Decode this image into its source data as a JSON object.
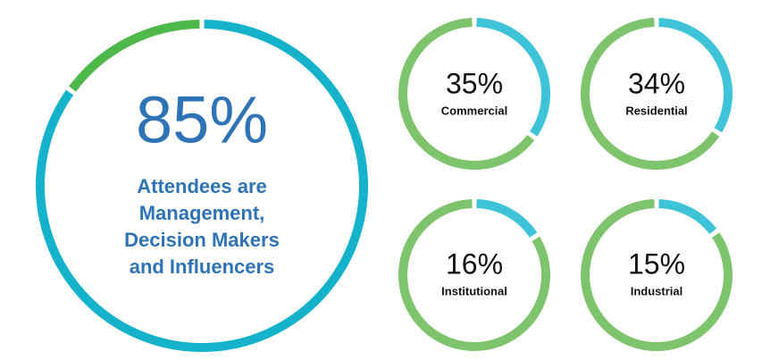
{
  "chart_data": [
    {
      "type": "donut",
      "value": 85,
      "value_label": "85%",
      "label": [
        "Attendees are",
        "Management,",
        "Decision Makers",
        "and Influencers"
      ],
      "colors": [
        "#14b3cb",
        "#4fb84a"
      ]
    },
    {
      "type": "donut",
      "value": 35,
      "value_label": "35%",
      "label": [
        "Commercial"
      ],
      "colors": [
        "#3ec3d8",
        "#7ec46c"
      ]
    },
    {
      "type": "donut",
      "value": 34,
      "value_label": "34%",
      "label": [
        "Residential"
      ],
      "colors": [
        "#3ec3d8",
        "#7ec46c"
      ]
    },
    {
      "type": "donut",
      "value": 16,
      "value_label": "16%",
      "label": [
        "Institutional"
      ],
      "colors": [
        "#3ec3d8",
        "#7ec46c"
      ]
    },
    {
      "type": "donut",
      "value": 15,
      "value_label": "15%",
      "label": [
        "Industrial"
      ],
      "colors": [
        "#3ec3d8",
        "#7ec46c"
      ]
    }
  ]
}
